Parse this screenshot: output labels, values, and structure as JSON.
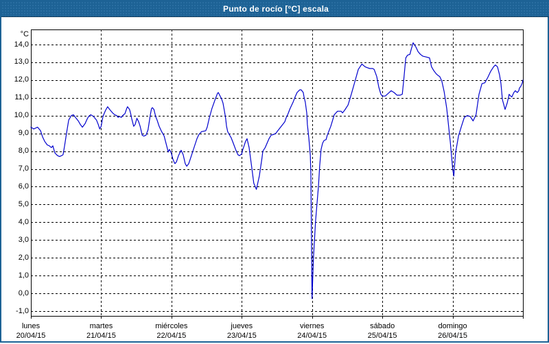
{
  "window": {
    "title": "Punto de rocío [°C] escala"
  },
  "colors": {
    "titlebar": "#1d6295",
    "titlebar_dot": "#2e72a5",
    "titlebar_edge": "#0e3a5c",
    "window_border": "#1d6295",
    "plot_border": "#000000",
    "gridline": "#000000",
    "label_text": "#000000",
    "series_line": "#0000CD",
    "background": "#ffffff"
  },
  "chart_data": {
    "type": "line",
    "title": "Punto de rocío [°C] escala",
    "y_unit_label": "°C",
    "ylim": [
      -1.0,
      14.0
    ],
    "y_tick_step": 1.0,
    "y_tick_labels": [
      "14,0",
      "13,0",
      "12,0",
      "11,0",
      "10,0",
      "9,0",
      "8,0",
      "7,0",
      "6,0",
      "5,0",
      "4,0",
      "3,0",
      "2,0",
      "1,0",
      "0,0",
      "-1,0"
    ],
    "x_range_hours": [
      0,
      168
    ],
    "x_day_labels": [
      {
        "weekday": "lunes",
        "date": "20/04/15"
      },
      {
        "weekday": "martes",
        "date": "21/04/15"
      },
      {
        "weekday": "miércoles",
        "date": "22/04/15"
      },
      {
        "weekday": "jueves",
        "date": "23/04/15"
      },
      {
        "weekday": "viernes",
        "date": "24/04/15"
      },
      {
        "weekday": "sábado",
        "date": "25/04/15"
      },
      {
        "weekday": "domingo",
        "date": "26/04/15"
      }
    ],
    "grid": "dashed",
    "legend": "none",
    "series": [
      {
        "name": "punto de rocío",
        "color": "#0000CD",
        "points": [
          [
            0,
            9.35
          ],
          [
            1,
            9.25
          ],
          [
            1.6,
            9.3
          ],
          [
            2.3,
            9.35
          ],
          [
            3.3,
            9.15
          ],
          [
            4,
            8.8
          ],
          [
            4.7,
            8.55
          ],
          [
            5.6,
            8.35
          ],
          [
            6.3,
            8.3
          ],
          [
            7,
            8.2
          ],
          [
            7.5,
            8.3
          ],
          [
            8.2,
            7.9
          ],
          [
            9.1,
            7.75
          ],
          [
            9.8,
            7.7
          ],
          [
            10.5,
            7.75
          ],
          [
            11,
            7.8
          ],
          [
            11.5,
            8.3
          ],
          [
            12.2,
            9.05
          ],
          [
            12.9,
            9.75
          ],
          [
            13.8,
            10.0
          ],
          [
            14.5,
            10.05
          ],
          [
            15.2,
            9.9
          ],
          [
            16.2,
            9.7
          ],
          [
            16.9,
            9.5
          ],
          [
            17.6,
            9.35
          ],
          [
            18.5,
            9.55
          ],
          [
            19.2,
            9.8
          ],
          [
            19.7,
            9.95
          ],
          [
            20.4,
            10.05
          ],
          [
            21.4,
            9.95
          ],
          [
            22.4,
            9.75
          ],
          [
            23,
            9.5
          ],
          [
            23.5,
            9.25
          ],
          [
            24,
            9.4
          ],
          [
            24.6,
            9.95
          ],
          [
            25.5,
            10.3
          ],
          [
            26.2,
            10.5
          ],
          [
            26.9,
            10.35
          ],
          [
            27.9,
            10.15
          ],
          [
            28.6,
            10.05
          ],
          [
            29.3,
            10.0
          ],
          [
            29.8,
            9.9
          ],
          [
            30.3,
            9.95
          ],
          [
            30.9,
            9.9
          ],
          [
            31.6,
            10.05
          ],
          [
            32.1,
            10.1
          ],
          [
            32.7,
            10.4
          ],
          [
            33,
            10.5
          ],
          [
            33.7,
            10.35
          ],
          [
            34.1,
            10.1
          ],
          [
            34.4,
            9.85
          ],
          [
            35.1,
            9.4
          ],
          [
            35.6,
            9.5
          ],
          [
            36.2,
            9.85
          ],
          [
            36.8,
            9.65
          ],
          [
            37.3,
            9.4
          ],
          [
            38,
            8.9
          ],
          [
            38.6,
            8.85
          ],
          [
            39.3,
            8.9
          ],
          [
            40,
            9.2
          ],
          [
            40.8,
            10.05
          ],
          [
            41.2,
            10.4
          ],
          [
            41.5,
            10.45
          ],
          [
            42,
            10.35
          ],
          [
            42.6,
            9.95
          ],
          [
            43.1,
            9.75
          ],
          [
            43.8,
            9.4
          ],
          [
            44.5,
            9.15
          ],
          [
            45.5,
            8.85
          ],
          [
            46.2,
            8.4
          ],
          [
            46.9,
            7.95
          ],
          [
            47.3,
            8.1
          ],
          [
            47.8,
            7.95
          ],
          [
            48,
            7.85
          ],
          [
            48.5,
            7.55
          ],
          [
            49,
            7.35
          ],
          [
            49.2,
            7.3
          ],
          [
            49.7,
            7.4
          ],
          [
            50.4,
            7.75
          ],
          [
            51.3,
            8.05
          ],
          [
            52,
            7.8
          ],
          [
            52.7,
            7.3
          ],
          [
            53.2,
            7.15
          ],
          [
            53.9,
            7.3
          ],
          [
            54.4,
            7.55
          ],
          [
            55.1,
            7.9
          ],
          [
            56,
            8.35
          ],
          [
            56.7,
            8.7
          ],
          [
            57.4,
            8.95
          ],
          [
            58.3,
            9.1
          ],
          [
            59.7,
            9.15
          ],
          [
            60.2,
            9.35
          ],
          [
            60.9,
            9.85
          ],
          [
            61.8,
            10.4
          ],
          [
            63,
            10.95
          ],
          [
            63.7,
            11.25
          ],
          [
            64,
            11.3
          ],
          [
            65.1,
            10.95
          ],
          [
            65.6,
            10.7
          ],
          [
            66.1,
            10.25
          ],
          [
            66.5,
            9.85
          ],
          [
            66.8,
            9.4
          ],
          [
            67.2,
            9.1
          ],
          [
            67.7,
            8.95
          ],
          [
            68.4,
            8.75
          ],
          [
            69.1,
            8.45
          ],
          [
            70,
            8.05
          ],
          [
            70.7,
            7.8
          ],
          [
            71.2,
            7.75
          ],
          [
            71.6,
            7.8
          ],
          [
            72,
            7.85
          ],
          [
            72.2,
            8.0
          ],
          [
            73.3,
            8.55
          ],
          [
            73.8,
            8.7
          ],
          [
            74.5,
            8.2
          ],
          [
            75.4,
            7.1
          ],
          [
            76.1,
            6.2
          ],
          [
            77,
            5.85
          ],
          [
            78,
            6.6
          ],
          [
            78.9,
            7.6
          ],
          [
            79.2,
            8.0
          ],
          [
            80,
            8.2
          ],
          [
            81.3,
            8.7
          ],
          [
            82,
            8.9
          ],
          [
            83,
            8.95
          ],
          [
            83.6,
            9.0
          ],
          [
            84.3,
            9.15
          ],
          [
            85.5,
            9.4
          ],
          [
            86.7,
            9.65
          ],
          [
            87.1,
            9.85
          ],
          [
            87.8,
            10.1
          ],
          [
            88.5,
            10.4
          ],
          [
            89.5,
            10.75
          ],
          [
            90.2,
            11.05
          ],
          [
            90.9,
            11.3
          ],
          [
            91.8,
            11.45
          ],
          [
            92.3,
            11.45
          ],
          [
            93,
            11.3
          ],
          [
            93.2,
            11.1
          ],
          [
            93.7,
            10.75
          ],
          [
            94.2,
            10.15
          ],
          [
            94.4,
            9.5
          ],
          [
            94.9,
            8.75
          ],
          [
            95.4,
            7.75
          ],
          [
            95.6,
            6.7
          ],
          [
            96,
            -0.3
          ],
          [
            96.5,
            2.0
          ],
          [
            97.2,
            4.05
          ],
          [
            98.2,
            6.05
          ],
          [
            98.6,
            7.15
          ],
          [
            99.1,
            8.1
          ],
          [
            99.6,
            8.45
          ],
          [
            100.1,
            8.6
          ],
          [
            100.8,
            8.65
          ],
          [
            101.2,
            8.9
          ],
          [
            102.4,
            9.4
          ],
          [
            103.6,
            10.05
          ],
          [
            104.7,
            10.25
          ],
          [
            105.9,
            10.25
          ],
          [
            106.4,
            10.15
          ],
          [
            107.1,
            10.3
          ],
          [
            108.3,
            10.6
          ],
          [
            109.4,
            11.2
          ],
          [
            110.6,
            11.9
          ],
          [
            111.8,
            12.6
          ],
          [
            113,
            12.9
          ],
          [
            114.1,
            12.75
          ],
          [
            114.8,
            12.7
          ],
          [
            115.7,
            12.65
          ],
          [
            116.7,
            12.65
          ],
          [
            117.2,
            12.6
          ],
          [
            118.1,
            12.2
          ],
          [
            118.8,
            11.6
          ],
          [
            119.5,
            11.2
          ],
          [
            120,
            11.1
          ],
          [
            121,
            11.1
          ],
          [
            122,
            11.25
          ],
          [
            123,
            11.4
          ],
          [
            124,
            11.3
          ],
          [
            125,
            11.15
          ],
          [
            126,
            11.15
          ],
          [
            126.8,
            11.2
          ],
          [
            127.3,
            12.0
          ],
          [
            128,
            13.25
          ],
          [
            128.6,
            13.4
          ],
          [
            129.4,
            13.45
          ],
          [
            129.8,
            13.7
          ],
          [
            130.5,
            14.1
          ],
          [
            131.5,
            13.85
          ],
          [
            132.2,
            13.6
          ],
          [
            133,
            13.45
          ],
          [
            133.8,
            13.35
          ],
          [
            135,
            13.3
          ],
          [
            136.1,
            13.25
          ],
          [
            136.8,
            12.75
          ],
          [
            137.5,
            12.55
          ],
          [
            138.4,
            12.35
          ],
          [
            139.1,
            12.25
          ],
          [
            139.6,
            12.2
          ],
          [
            140.3,
            11.95
          ],
          [
            141.1,
            11.35
          ],
          [
            142,
            10.4
          ],
          [
            142.7,
            9.3
          ],
          [
            143.2,
            8.5
          ],
          [
            144,
            7.0
          ],
          [
            144.4,
            6.6
          ],
          [
            145,
            7.9
          ],
          [
            146,
            8.85
          ],
          [
            147,
            9.4
          ],
          [
            148,
            9.9
          ],
          [
            149,
            10.0
          ],
          [
            150,
            9.95
          ],
          [
            151,
            9.7
          ],
          [
            152,
            10.05
          ],
          [
            153,
            11.2
          ],
          [
            154,
            11.8
          ],
          [
            155,
            11.85
          ],
          [
            156,
            12.15
          ],
          [
            157,
            12.5
          ],
          [
            158,
            12.75
          ],
          [
            158.6,
            12.85
          ],
          [
            159.3,
            12.75
          ],
          [
            160,
            12.3
          ],
          [
            160.5,
            11.8
          ],
          [
            161,
            10.9
          ],
          [
            161.9,
            10.35
          ],
          [
            162.6,
            10.7
          ],
          [
            163.1,
            11.05
          ],
          [
            163.3,
            11.2
          ],
          [
            163.8,
            11.1
          ],
          [
            164.2,
            11.05
          ],
          [
            164.9,
            11.3
          ],
          [
            165.4,
            11.4
          ],
          [
            166.1,
            11.3
          ],
          [
            166.6,
            11.4
          ],
          [
            166.8,
            11.55
          ],
          [
            167.3,
            11.65
          ],
          [
            167.8,
            11.85
          ],
          [
            168,
            12.0
          ]
        ]
      }
    ]
  }
}
